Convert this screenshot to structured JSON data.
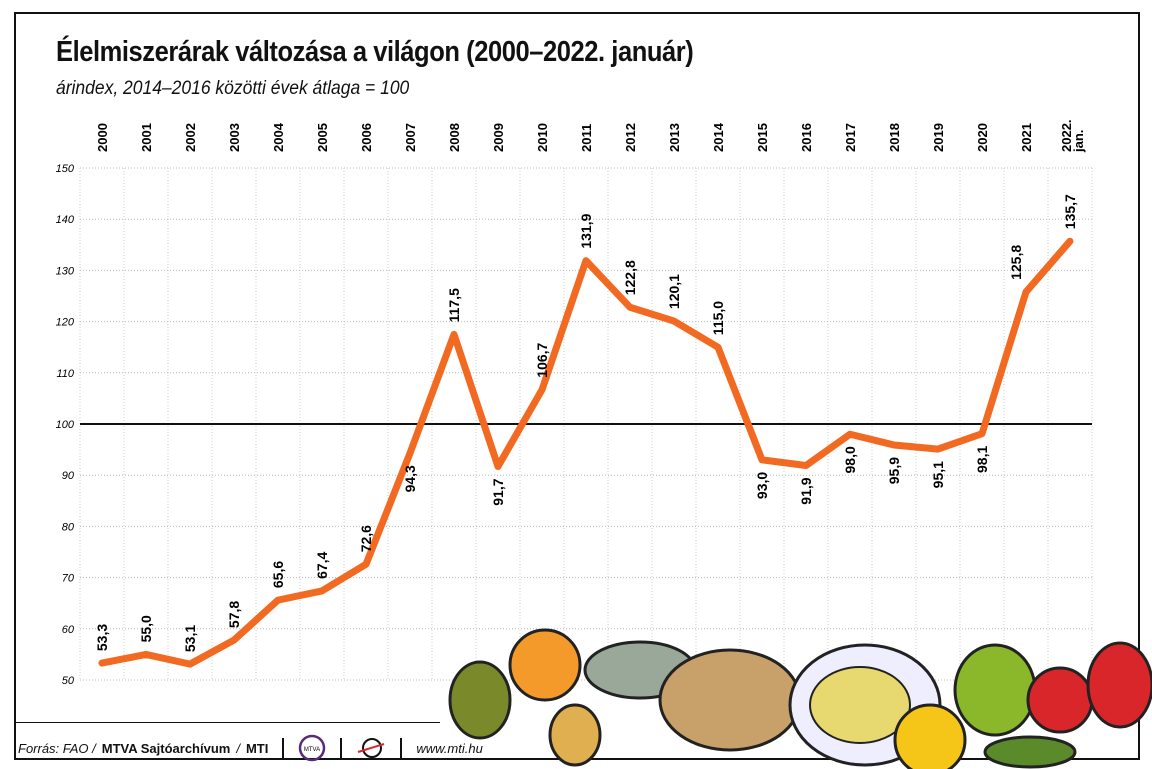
{
  "chart_data": {
    "type": "line",
    "title": "Élelmiszerárak változása a világon (2000–2022. január)",
    "subtitle": "árindex, 2014–2016 közötti évek átlaga = 100",
    "categories": [
      "2000",
      "2001",
      "2002",
      "2003",
      "2004",
      "2005",
      "2006",
      "2007",
      "2008",
      "2009",
      "2010",
      "2011",
      "2012",
      "2013",
      "2014",
      "2015",
      "2016",
      "2017",
      "2018",
      "2019",
      "2020",
      "2021",
      "2022. jan."
    ],
    "values": [
      53.3,
      55.0,
      53.1,
      57.8,
      65.6,
      67.4,
      72.6,
      94.3,
      117.5,
      91.7,
      106.7,
      131.9,
      122.8,
      120.1,
      115.0,
      93.0,
      91.9,
      98.0,
      95.9,
      95.1,
      98.1,
      125.8,
      135.7
    ],
    "labels": [
      "53,3",
      "55,0",
      "53,1",
      "57,8",
      "65,6",
      "67,4",
      "72,6",
      "94,3",
      "117,5",
      "91,7",
      "106,7",
      "131,9",
      "122,8",
      "120,1",
      "115,0",
      "93,0",
      "91,9",
      "98,0",
      "95,9",
      "95,1",
      "98,1",
      "125,8",
      "135,7"
    ],
    "ylim": [
      50,
      150
    ],
    "yticks": [
      "50",
      "60",
      "70",
      "80",
      "90",
      "100",
      "110",
      "120",
      "130",
      "140",
      "150"
    ],
    "reference_line": 100,
    "line_color": "#f26a21",
    "grid": true
  },
  "footer": {
    "source_prefix": "Forrás: FAO / ",
    "source_bold": "MTVA Sajtóarchívum",
    "sep": " / ",
    "mti": "MTI",
    "url": "www.mti.hu",
    "logo1": "MTVA"
  }
}
